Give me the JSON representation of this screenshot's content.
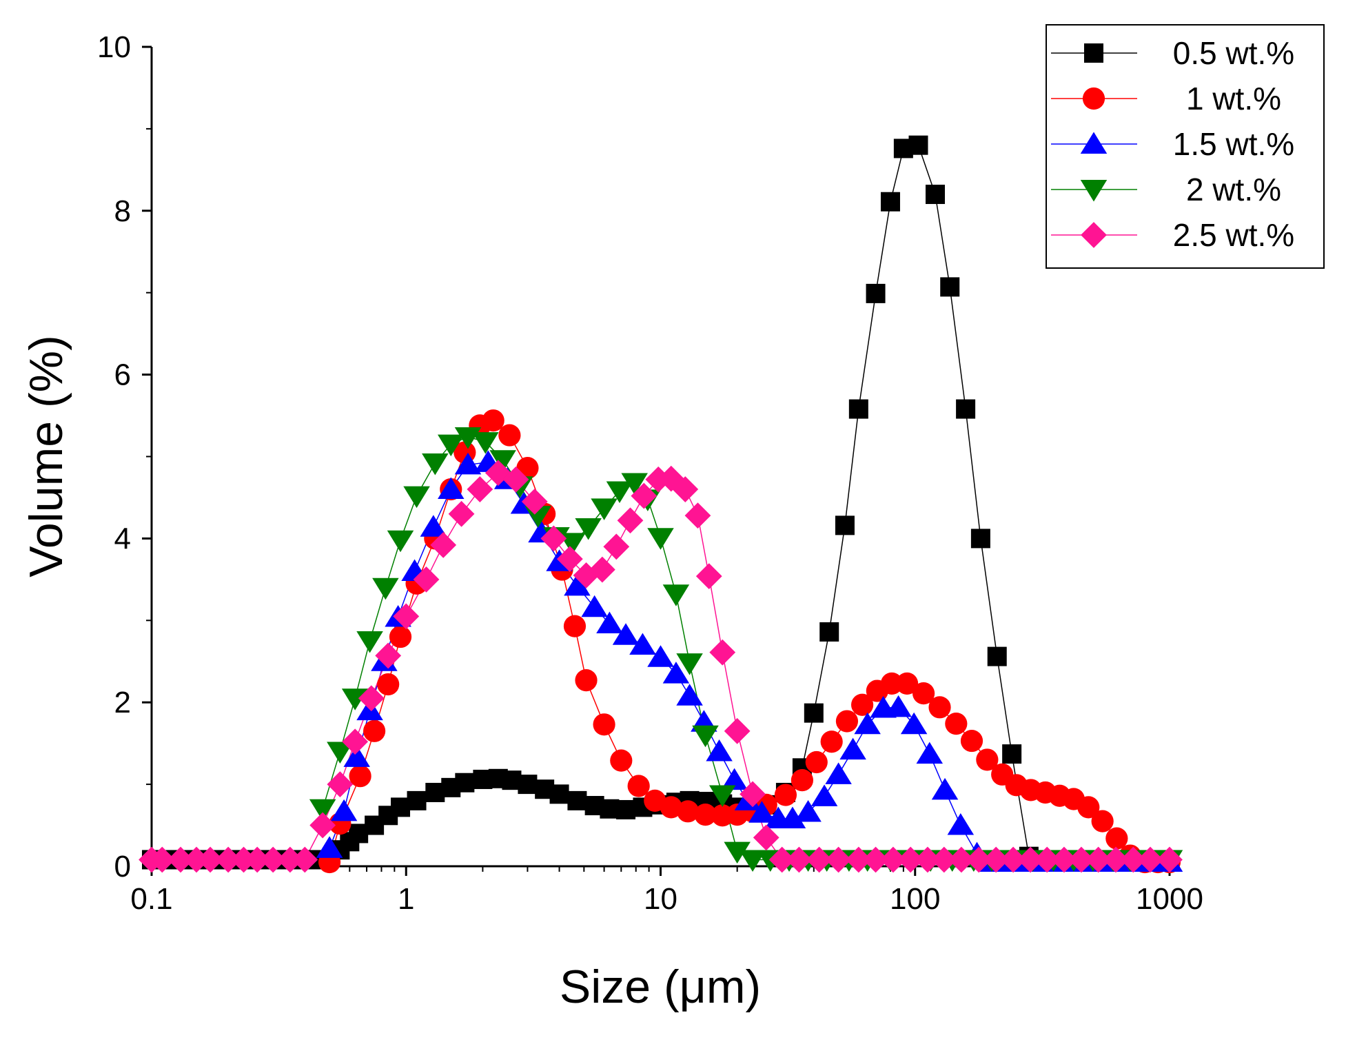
{
  "chart_data": {
    "type": "scatter",
    "xscale": "log",
    "xlabel": "Size (μm)",
    "ylabel": "Volume (%)",
    "xlim": [
      0.1,
      1000
    ],
    "ylim": [
      0,
      10
    ],
    "xticks": [
      0.1,
      1,
      10,
      100,
      1000
    ],
    "xtick_labels": [
      "0.1",
      "1",
      "10",
      "100",
      "1000"
    ],
    "yticks": [
      0,
      2,
      4,
      6,
      8,
      10
    ],
    "ytick_labels": [
      "0",
      "2",
      "4",
      "6",
      "8",
      "10"
    ],
    "legend_position": "top-right",
    "series": [
      {
        "name": "0.5 wt.%",
        "color": "#000000",
        "marker": "square",
        "points": [
          [
            0.1,
            0.08
          ],
          [
            0.11,
            0.08
          ],
          [
            0.13,
            0.08
          ],
          [
            0.15,
            0.08
          ],
          [
            0.17,
            0.08
          ],
          [
            0.2,
            0.08
          ],
          [
            0.23,
            0.08
          ],
          [
            0.26,
            0.08
          ],
          [
            0.3,
            0.08
          ],
          [
            0.35,
            0.08
          ],
          [
            0.4,
            0.08
          ],
          [
            0.45,
            0.08
          ],
          [
            0.55,
            0.2
          ],
          [
            0.6,
            0.3
          ],
          [
            0.65,
            0.4
          ],
          [
            0.75,
            0.5
          ],
          [
            0.85,
            0.62
          ],
          [
            0.95,
            0.72
          ],
          [
            1.1,
            0.8
          ],
          [
            1.3,
            0.9
          ],
          [
            1.5,
            0.96
          ],
          [
            1.7,
            1.02
          ],
          [
            2.0,
            1.06
          ],
          [
            2.3,
            1.07
          ],
          [
            2.6,
            1.05
          ],
          [
            3.0,
            1.0
          ],
          [
            3.5,
            0.94
          ],
          [
            4.0,
            0.88
          ],
          [
            4.7,
            0.8
          ],
          [
            5.5,
            0.74
          ],
          [
            6.3,
            0.7
          ],
          [
            7.3,
            0.69
          ],
          [
            8.5,
            0.72
          ],
          [
            10,
            0.75
          ],
          [
            11.5,
            0.78
          ],
          [
            13,
            0.8
          ],
          [
            15,
            0.79
          ],
          [
            17.5,
            0.76
          ],
          [
            20,
            0.72
          ],
          [
            23,
            0.7
          ],
          [
            26,
            0.75
          ],
          [
            31,
            0.9
          ],
          [
            36,
            1.2
          ],
          [
            40,
            1.87
          ],
          [
            46,
            2.86
          ],
          [
            53,
            4.16
          ],
          [
            60,
            5.58
          ],
          [
            70,
            6.99
          ],
          [
            80,
            8.11
          ],
          [
            90,
            8.76
          ],
          [
            103,
            8.8
          ],
          [
            120,
            8.2
          ],
          [
            137,
            7.07
          ],
          [
            158,
            5.58
          ],
          [
            181,
            4.0
          ],
          [
            210,
            2.56
          ],
          [
            240,
            1.37
          ],
          [
            280,
            0.12
          ],
          [
            320,
            0.08
          ],
          [
            380,
            0.08
          ],
          [
            450,
            0.08
          ],
          [
            520,
            0.08
          ],
          [
            600,
            0.08
          ],
          [
            700,
            0.08
          ],
          [
            800,
            0.08
          ],
          [
            900,
            0.08
          ],
          [
            1000,
            0.08
          ]
        ]
      },
      {
        "name": "1 wt.%",
        "color": "#ff0000",
        "marker": "circle",
        "points": [
          [
            0.5,
            0.05
          ],
          [
            0.55,
            0.52
          ],
          [
            0.66,
            1.1
          ],
          [
            0.75,
            1.65
          ],
          [
            0.85,
            2.22
          ],
          [
            0.95,
            2.8
          ],
          [
            1.1,
            3.45
          ],
          [
            1.3,
            4.0
          ],
          [
            1.5,
            4.6
          ],
          [
            1.7,
            5.05
          ],
          [
            1.95,
            5.38
          ],
          [
            2.2,
            5.44
          ],
          [
            2.55,
            5.26
          ],
          [
            3.0,
            4.86
          ],
          [
            3.5,
            4.3
          ],
          [
            4.1,
            3.62
          ],
          [
            4.6,
            2.93
          ],
          [
            5.1,
            2.27
          ],
          [
            6.0,
            1.73
          ],
          [
            7.0,
            1.29
          ],
          [
            8.2,
            0.98
          ],
          [
            9.5,
            0.8
          ],
          [
            11,
            0.72
          ],
          [
            12.8,
            0.67
          ],
          [
            15,
            0.63
          ],
          [
            17.5,
            0.62
          ],
          [
            20,
            0.63
          ],
          [
            23,
            0.67
          ],
          [
            26,
            0.75
          ],
          [
            31,
            0.87
          ],
          [
            36,
            1.05
          ],
          [
            41,
            1.27
          ],
          [
            47,
            1.52
          ],
          [
            54,
            1.77
          ],
          [
            62,
            1.97
          ],
          [
            71,
            2.14
          ],
          [
            81,
            2.23
          ],
          [
            93,
            2.23
          ],
          [
            108,
            2.11
          ],
          [
            125,
            1.94
          ],
          [
            145,
            1.74
          ],
          [
            167,
            1.53
          ],
          [
            192,
            1.3
          ],
          [
            220,
            1.12
          ],
          [
            250,
            0.99
          ],
          [
            285,
            0.93
          ],
          [
            325,
            0.9
          ],
          [
            370,
            0.86
          ],
          [
            420,
            0.82
          ],
          [
            480,
            0.72
          ],
          [
            545,
            0.55
          ],
          [
            620,
            0.34
          ],
          [
            700,
            0.13
          ],
          [
            800,
            0.05
          ],
          [
            900,
            0.05
          ],
          [
            1000,
            0.05
          ]
        ]
      },
      {
        "name": "1.5 wt.%",
        "color": "#0000ff",
        "marker": "triangle-up",
        "points": [
          [
            0.5,
            0.22
          ],
          [
            0.57,
            0.67
          ],
          [
            0.64,
            1.33
          ],
          [
            0.72,
            1.9
          ],
          [
            0.82,
            2.5
          ],
          [
            0.93,
            3.04
          ],
          [
            1.08,
            3.6
          ],
          [
            1.28,
            4.14
          ],
          [
            1.5,
            4.6
          ],
          [
            1.75,
            4.9
          ],
          [
            2.1,
            4.93
          ],
          [
            2.5,
            4.72
          ],
          [
            2.9,
            4.42
          ],
          [
            3.4,
            4.07
          ],
          [
            4.0,
            3.72
          ],
          [
            4.7,
            3.42
          ],
          [
            5.5,
            3.16
          ],
          [
            6.3,
            2.96
          ],
          [
            7.3,
            2.82
          ],
          [
            8.5,
            2.7
          ],
          [
            10,
            2.55
          ],
          [
            11.5,
            2.35
          ],
          [
            13,
            2.08
          ],
          [
            14.8,
            1.76
          ],
          [
            17,
            1.4
          ],
          [
            19.5,
            1.05
          ],
          [
            22,
            0.8
          ],
          [
            25,
            0.65
          ],
          [
            29,
            0.58
          ],
          [
            33,
            0.58
          ],
          [
            38,
            0.66
          ],
          [
            44,
            0.85
          ],
          [
            50,
            1.12
          ],
          [
            57,
            1.42
          ],
          [
            65,
            1.73
          ],
          [
            75,
            1.93
          ],
          [
            86,
            1.94
          ],
          [
            99,
            1.73
          ],
          [
            114,
            1.37
          ],
          [
            131,
            0.93
          ],
          [
            151,
            0.5
          ],
          [
            175,
            0.15
          ],
          [
            200,
            0.05
          ],
          [
            230,
            0.05
          ],
          [
            270,
            0.05
          ],
          [
            320,
            0.05
          ],
          [
            380,
            0.05
          ],
          [
            450,
            0.05
          ],
          [
            520,
            0.05
          ],
          [
            600,
            0.05
          ],
          [
            700,
            0.05
          ],
          [
            800,
            0.05
          ],
          [
            900,
            0.05
          ],
          [
            1000,
            0.05
          ]
        ]
      },
      {
        "name": "2 wt.%",
        "color": "#008000",
        "marker": "triangle-down",
        "points": [
          [
            0.47,
            0.7
          ],
          [
            0.55,
            1.4
          ],
          [
            0.63,
            2.05
          ],
          [
            0.72,
            2.75
          ],
          [
            0.83,
            3.4
          ],
          [
            0.95,
            3.98
          ],
          [
            1.1,
            4.52
          ],
          [
            1.3,
            4.92
          ],
          [
            1.5,
            5.15
          ],
          [
            1.75,
            5.24
          ],
          [
            2.05,
            5.18
          ],
          [
            2.4,
            4.96
          ],
          [
            2.8,
            4.64
          ],
          [
            3.3,
            4.28
          ],
          [
            3.9,
            4.02
          ],
          [
            4.5,
            3.95
          ],
          [
            5.2,
            4.13
          ],
          [
            6.0,
            4.37
          ],
          [
            6.9,
            4.58
          ],
          [
            7.9,
            4.68
          ],
          [
            8.9,
            4.48
          ],
          [
            10,
            4.01
          ],
          [
            11.5,
            3.32
          ],
          [
            13,
            2.48
          ],
          [
            15,
            1.6
          ],
          [
            17.5,
            0.87
          ],
          [
            20,
            0.18
          ],
          [
            23,
            0.08
          ],
          [
            27,
            0.08
          ],
          [
            32,
            0.08
          ],
          [
            38,
            0.08
          ],
          [
            45,
            0.08
          ],
          [
            55,
            0.08
          ],
          [
            65,
            0.08
          ],
          [
            80,
            0.08
          ],
          [
            95,
            0.08
          ],
          [
            115,
            0.08
          ],
          [
            140,
            0.08
          ],
          [
            170,
            0.08
          ],
          [
            200,
            0.08
          ],
          [
            240,
            0.08
          ],
          [
            290,
            0.08
          ],
          [
            350,
            0.08
          ],
          [
            420,
            0.08
          ],
          [
            500,
            0.08
          ],
          [
            600,
            0.08
          ],
          [
            700,
            0.08
          ],
          [
            850,
            0.08
          ],
          [
            1000,
            0.08
          ]
        ]
      },
      {
        "name": "2.5 wt.%",
        "color": "#ff1493",
        "marker": "diamond",
        "points": [
          [
            0.1,
            0.08
          ],
          [
            0.11,
            0.08
          ],
          [
            0.13,
            0.08
          ],
          [
            0.15,
            0.08
          ],
          [
            0.17,
            0.08
          ],
          [
            0.2,
            0.08
          ],
          [
            0.23,
            0.08
          ],
          [
            0.26,
            0.08
          ],
          [
            0.3,
            0.08
          ],
          [
            0.35,
            0.08
          ],
          [
            0.4,
            0.08
          ],
          [
            0.47,
            0.5
          ],
          [
            0.55,
            1.0
          ],
          [
            0.63,
            1.52
          ],
          [
            0.73,
            2.05
          ],
          [
            0.85,
            2.57
          ],
          [
            1.0,
            3.05
          ],
          [
            1.2,
            3.5
          ],
          [
            1.4,
            3.92
          ],
          [
            1.65,
            4.3
          ],
          [
            1.95,
            4.6
          ],
          [
            2.3,
            4.8
          ],
          [
            2.7,
            4.72
          ],
          [
            3.2,
            4.45
          ],
          [
            3.8,
            4.0
          ],
          [
            4.4,
            3.75
          ],
          [
            5.1,
            3.55
          ],
          [
            5.9,
            3.62
          ],
          [
            6.7,
            3.9
          ],
          [
            7.6,
            4.22
          ],
          [
            8.6,
            4.52
          ],
          [
            9.8,
            4.72
          ],
          [
            11,
            4.73
          ],
          [
            12.5,
            4.6
          ],
          [
            14,
            4.28
          ],
          [
            15.5,
            3.54
          ],
          [
            17.5,
            2.61
          ],
          [
            20,
            1.65
          ],
          [
            23,
            0.88
          ],
          [
            26,
            0.35
          ],
          [
            30,
            0.08
          ],
          [
            35,
            0.08
          ],
          [
            42,
            0.08
          ],
          [
            50,
            0.08
          ],
          [
            60,
            0.08
          ],
          [
            70,
            0.08
          ],
          [
            82,
            0.08
          ],
          [
            96,
            0.08
          ],
          [
            112,
            0.08
          ],
          [
            130,
            0.08
          ],
          [
            152,
            0.08
          ],
          [
            178,
            0.08
          ],
          [
            208,
            0.08
          ],
          [
            243,
            0.08
          ],
          [
            284,
            0.08
          ],
          [
            330,
            0.08
          ],
          [
            385,
            0.08
          ],
          [
            450,
            0.08
          ],
          [
            525,
            0.08
          ],
          [
            615,
            0.08
          ],
          [
            720,
            0.08
          ],
          [
            840,
            0.08
          ],
          [
            1000,
            0.08
          ]
        ]
      }
    ]
  }
}
